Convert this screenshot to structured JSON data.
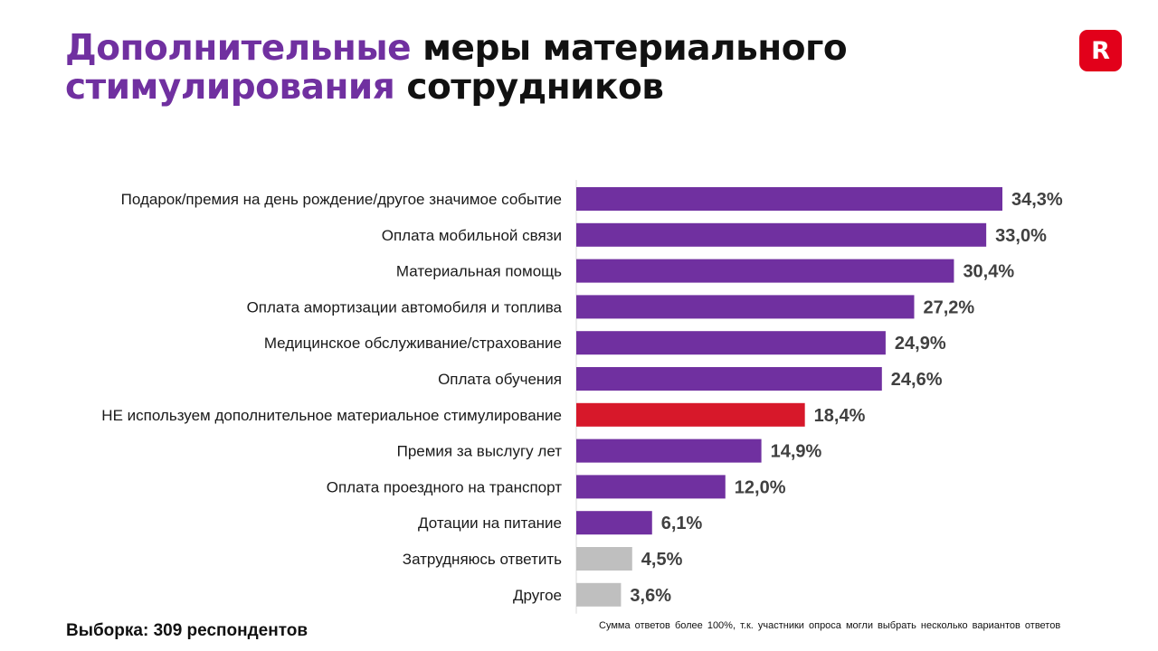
{
  "title": {
    "line1_accent": "Дополнительные",
    "line1_rest": "меры материального",
    "line2_accent": "стимулирования",
    "line2_rest": "сотрудников"
  },
  "logo": {
    "letter": "R",
    "color": "#e2001a"
  },
  "chart_data": {
    "type": "bar",
    "orientation": "horizontal",
    "categories": [
      "Подарок/премия на день рождение/другое значимое событие",
      "Оплата мобильной связи",
      "Материальная помощь",
      "Оплата амортизации автомобиля и топлива",
      "Медицинское обслуживание/страхование",
      "Оплата обучения",
      "НЕ используем дополнительное материальное стимулирование",
      "Премия за выслугу лет",
      "Оплата проездного на транспорт",
      "Дотации на питание",
      "Затрудняюсь ответить",
      "Другое"
    ],
    "values": [
      34.3,
      33.0,
      30.4,
      27.2,
      24.9,
      24.6,
      18.4,
      14.9,
      12.0,
      6.1,
      4.5,
      3.6
    ],
    "value_labels": [
      "34,3%",
      "33,0%",
      "30,4%",
      "27,2%",
      "24,9%",
      "24,6%",
      "18,4%",
      "14,9%",
      "12,0%",
      "6,1%",
      "4,5%",
      "3,6%"
    ],
    "colors": [
      "#7030a0",
      "#7030a0",
      "#7030a0",
      "#7030a0",
      "#7030a0",
      "#7030a0",
      "#d7182a",
      "#7030a0",
      "#7030a0",
      "#7030a0",
      "#bfbfbf",
      "#bfbfbf"
    ],
    "unit": "%",
    "xlim": [
      0,
      34.3
    ],
    "grid": false,
    "legend": "none"
  },
  "footer": {
    "sample": "Выборка: 309 респондентов",
    "note": "Сумма ответов более 100%, т.к. участники опроса могли выбрать несколько вариантов ответов"
  }
}
